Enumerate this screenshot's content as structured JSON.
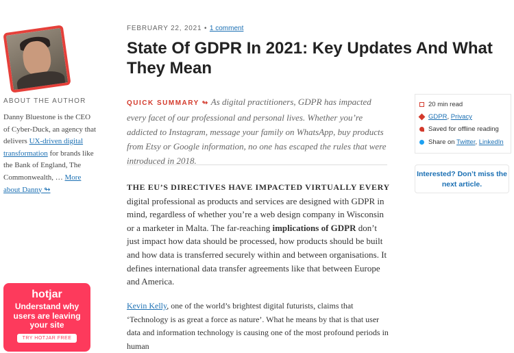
{
  "article": {
    "date": "FEBRUARY 22, 2021",
    "bullet": "•",
    "comments": "1 comment",
    "title": "State Of GDPR In 2021: Key Updates And What They Mean"
  },
  "author": {
    "heading": "ABOUT THE AUTHOR",
    "bio_start": "Danny Bluestone is the CEO of Cyber-Duck, an agency that delivers ",
    "bio_link": "UX-driven digital transformation",
    "bio_end": " for brands like the Bank of England, The Commonwealth, … ",
    "more_link": "More about Danny ↬"
  },
  "summary": {
    "label": "QUICK SUMMARY ↬",
    "text": "As digital practitioners, GDPR has impacted every facet of our professional and personal lives. Whether you’re addicted to Instagram, message your family on WhatsApp, buy products from Etsy or Google information, no one has escaped the rules that were introduced in 2018."
  },
  "sidebar": {
    "read_time": "20 min read",
    "tags": [
      "GDPR",
      "Privacy"
    ],
    "separator": ", ",
    "saved": "Saved for offline reading",
    "share_prefix": "Share on ",
    "share_links": [
      "Twitter",
      "LinkedIn"
    ],
    "next_article": "Interested? Don’t miss the next article."
  },
  "body": {
    "p1_lead": "THE EU’S DIRECTIVES HAVE IMPACTED VIRTUALLY EVERY",
    "p1_start": " digital professional as products and services are designed with GDPR in mind, regardless of whether you’re a web design company in Wisconsin or a marketer in Malta. The far-reaching ",
    "p1_bold": "implications of GDPR",
    "p1_end": " don’t just impact how data should be processed, how products should be built and how data is transferred securely within and between organisations. It defines international data transfer agreements like that between Europe and America.",
    "p2_link": "Kevin Kelly",
    "p2_text": ", one of the world’s brightest digital futurists, claims that ‘Technology is as great a force as nature’. What he means by that is that user data and information technology is causing one of the most profound periods in human"
  },
  "ad": {
    "logo": "hotjar",
    "text": "Understand why users are leaving your site",
    "button": "TRY HOTJAR FREE"
  }
}
